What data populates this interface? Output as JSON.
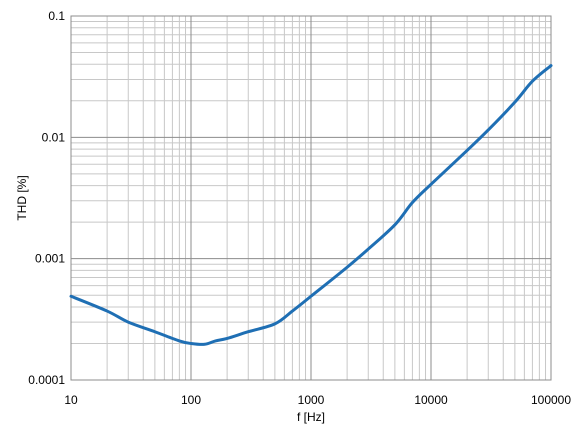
{
  "chart_data": {
    "type": "line",
    "xlabel": "f  [Hz]",
    "ylabel": "THD [%]",
    "x_scale": "log",
    "y_scale": "log",
    "xlim": [
      10,
      100000
    ],
    "ylim": [
      0.0001,
      0.1
    ],
    "grid": true,
    "legend": "none",
    "x_ticks": [
      "10",
      "100",
      "1000",
      "10000",
      "100000"
    ],
    "y_ticks": [
      "0.0001",
      "0.001",
      "0.01",
      "0.1"
    ],
    "series": [
      {
        "color": "#1f6fb4",
        "x": [
          10,
          20,
          30,
          50,
          80,
          100,
          130,
          160,
          200,
          300,
          500,
          700,
          1000,
          2000,
          3000,
          5000,
          7000,
          10000,
          20000,
          30000,
          50000,
          70000,
          100000
        ],
        "y": [
          0.00049,
          0.00037,
          0.0003,
          0.00025,
          0.00021,
          0.0002,
          0.000197,
          0.00021,
          0.00022,
          0.00025,
          0.00029,
          0.00037,
          0.00049,
          0.00085,
          0.0012,
          0.0019,
          0.0029,
          0.0041,
          0.0078,
          0.0115,
          0.0195,
          0.029,
          0.039
        ]
      }
    ]
  }
}
